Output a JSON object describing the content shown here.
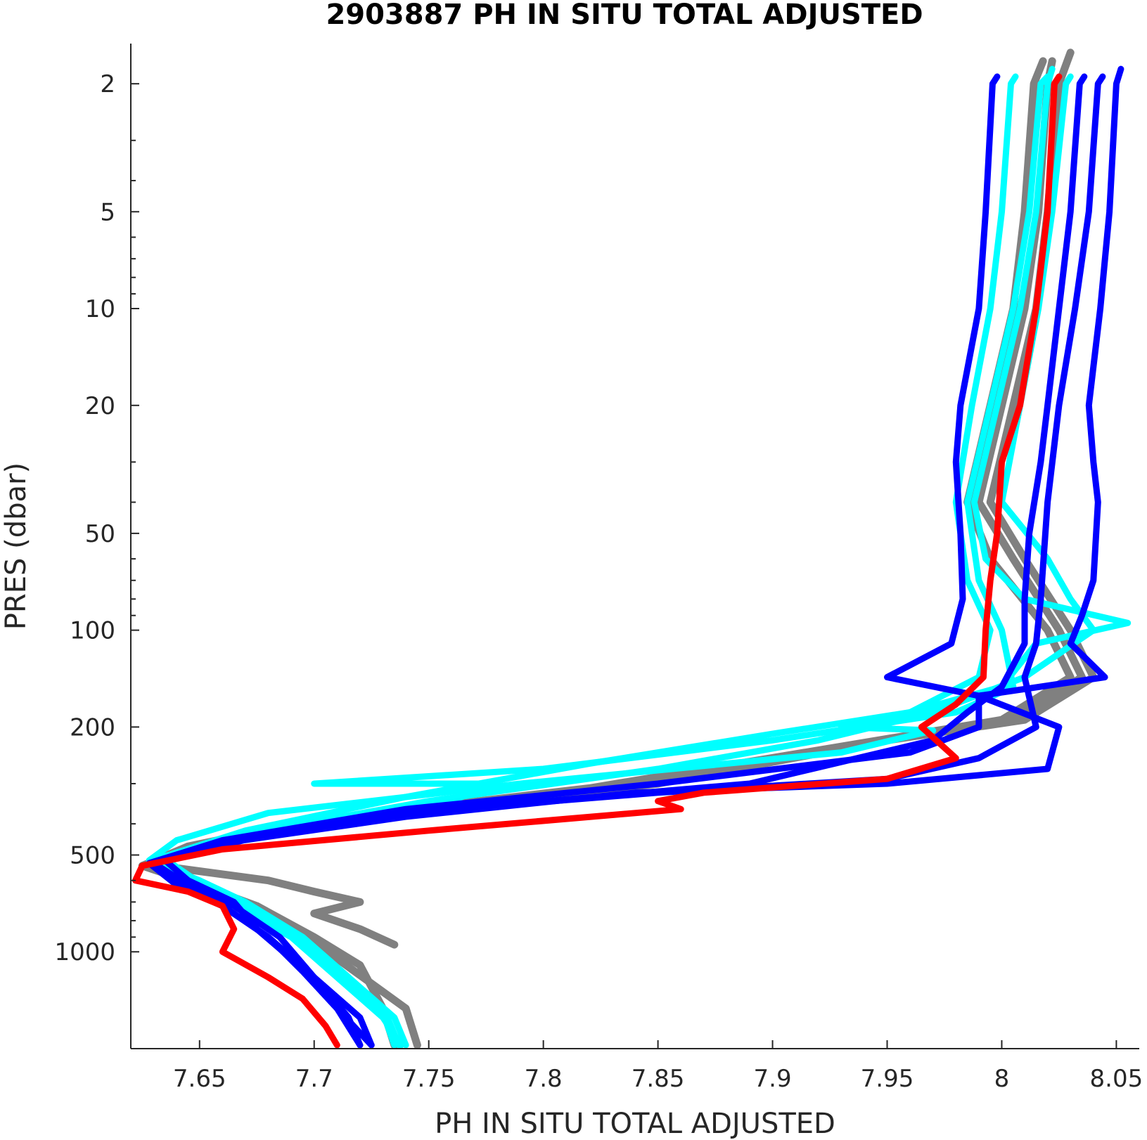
{
  "chart_data": {
    "type": "line",
    "title": "2903887  PH IN SITU TOTAL ADJUSTED",
    "xlabel": "PH IN SITU TOTAL ADJUSTED",
    "ylabel": "PRES (dbar)",
    "xlim": [
      7.62,
      8.06
    ],
    "ylim": [
      1.5,
      2000
    ],
    "y_scale": "log",
    "y_reversed": true,
    "grid": false,
    "x_ticks": [
      7.65,
      7.7,
      7.75,
      7.8,
      7.85,
      7.9,
      7.95,
      8.0,
      8.05
    ],
    "x_tick_labels": [
      "7.65",
      "7.7",
      "7.75",
      "7.8",
      "7.85",
      "7.9",
      "7.95",
      "8",
      "8.05"
    ],
    "y_ticks": [
      2,
      5,
      10,
      20,
      50,
      100,
      200,
      500,
      1000
    ],
    "y_tick_labels": [
      "2",
      "5",
      "10",
      "20",
      "50",
      "100",
      "200",
      "500",
      "1000"
    ],
    "series": [
      {
        "color": "#808080",
        "points": [
          [
            8.03,
            1.6
          ],
          [
            8.025,
            2
          ],
          [
            8.02,
            5
          ],
          [
            8.015,
            10
          ],
          [
            8.005,
            20
          ],
          [
            7.995,
            40
          ],
          [
            8.01,
            60
          ],
          [
            8.03,
            100
          ],
          [
            8.04,
            140
          ],
          [
            8.01,
            190
          ],
          [
            7.95,
            220
          ],
          [
            7.85,
            300
          ],
          [
            7.72,
            380
          ],
          [
            7.66,
            460
          ],
          [
            7.63,
            530
          ],
          [
            7.64,
            600
          ],
          [
            7.66,
            700
          ],
          [
            7.69,
            850
          ],
          [
            7.71,
            1050
          ],
          [
            7.74,
            1500
          ],
          [
            7.745,
            1950
          ]
        ]
      },
      {
        "color": "#808080",
        "points": [
          [
            8.018,
            1.7
          ],
          [
            8.014,
            2
          ],
          [
            8.01,
            5
          ],
          [
            8.005,
            10
          ],
          [
            7.995,
            20
          ],
          [
            7.985,
            40
          ],
          [
            7.995,
            60
          ],
          [
            8.02,
            100
          ],
          [
            8.03,
            140
          ],
          [
            8.0,
            190
          ],
          [
            7.93,
            230
          ],
          [
            7.82,
            310
          ],
          [
            7.7,
            390
          ],
          [
            7.645,
            470
          ],
          [
            7.625,
            540
          ],
          [
            7.65,
            620
          ],
          [
            7.675,
            720
          ],
          [
            7.7,
            900
          ],
          [
            7.72,
            1100
          ],
          [
            7.73,
            1500
          ],
          [
            7.735,
            1950
          ]
        ]
      },
      {
        "color": "#808080",
        "points": [
          [
            8.022,
            1.7
          ],
          [
            8.02,
            2
          ],
          [
            8.016,
            5
          ],
          [
            8.01,
            10
          ],
          [
            8.0,
            20
          ],
          [
            7.99,
            40
          ],
          [
            8.005,
            60
          ],
          [
            8.025,
            100
          ],
          [
            8.035,
            140
          ],
          [
            8.005,
            190
          ],
          [
            7.94,
            225
          ],
          [
            7.83,
            305
          ],
          [
            7.71,
            385
          ],
          [
            7.65,
            465
          ],
          [
            7.628,
            535
          ],
          [
            7.68,
            600
          ],
          [
            7.7,
            650
          ],
          [
            7.72,
            700
          ],
          [
            7.7,
            760
          ],
          [
            7.72,
            850
          ],
          [
            7.735,
            950
          ]
        ]
      },
      {
        "color": "#00ffff",
        "points": [
          [
            8.022,
            1.8
          ],
          [
            8.02,
            2
          ],
          [
            8.015,
            5
          ],
          [
            8.008,
            10
          ],
          [
            7.998,
            20
          ],
          [
            7.988,
            40
          ],
          [
            7.993,
            60
          ],
          [
            8.01,
            80
          ],
          [
            8.055,
            95
          ],
          [
            8.015,
            110
          ],
          [
            8.0,
            150
          ],
          [
            7.96,
            180
          ],
          [
            7.93,
            200
          ],
          [
            7.97,
            205
          ],
          [
            7.93,
            240
          ],
          [
            7.79,
            300
          ],
          [
            7.68,
            370
          ],
          [
            7.64,
            450
          ],
          [
            7.628,
            520
          ],
          [
            7.65,
            600
          ],
          [
            7.67,
            700
          ],
          [
            7.695,
            900
          ],
          [
            7.715,
            1200
          ],
          [
            7.735,
            1600
          ],
          [
            7.74,
            1950
          ]
        ]
      },
      {
        "color": "#00ffff",
        "points": [
          [
            8.02,
            1.9
          ],
          [
            8.017,
            2
          ],
          [
            8.012,
            5
          ],
          [
            8.005,
            10
          ],
          [
            7.995,
            20
          ],
          [
            7.985,
            40
          ],
          [
            7.99,
            70
          ],
          [
            8.0,
            100
          ],
          [
            8.005,
            150
          ],
          [
            7.98,
            180
          ],
          [
            7.9,
            220
          ],
          [
            7.8,
            270
          ],
          [
            7.7,
            300
          ],
          [
            7.78,
            300
          ],
          [
            7.75,
            360
          ],
          [
            7.66,
            450
          ],
          [
            7.63,
            530
          ],
          [
            7.645,
            610
          ],
          [
            7.665,
            720
          ],
          [
            7.69,
            900
          ],
          [
            7.71,
            1200
          ],
          [
            7.73,
            1600
          ],
          [
            7.738,
            1950
          ]
        ]
      },
      {
        "color": "#00ffff",
        "points": [
          [
            8.006,
            1.9
          ],
          [
            8.004,
            2
          ],
          [
            8.0,
            5
          ],
          [
            7.995,
            10
          ],
          [
            7.987,
            20
          ],
          [
            7.98,
            40
          ],
          [
            7.985,
            70
          ],
          [
            7.995,
            100
          ],
          [
            7.99,
            140
          ],
          [
            7.96,
            180
          ],
          [
            7.9,
            210
          ],
          [
            7.82,
            260
          ],
          [
            7.74,
            330
          ],
          [
            7.67,
            420
          ],
          [
            7.633,
            510
          ],
          [
            7.645,
            600
          ],
          [
            7.665,
            700
          ],
          [
            7.69,
            880
          ],
          [
            7.71,
            1150
          ],
          [
            7.73,
            1550
          ],
          [
            7.735,
            1950
          ]
        ]
      },
      {
        "color": "#00ffff",
        "points": [
          [
            8.03,
            1.9
          ],
          [
            8.028,
            2
          ],
          [
            8.022,
            5
          ],
          [
            8.016,
            10
          ],
          [
            8.008,
            20
          ],
          [
            8.0,
            40
          ],
          [
            8.02,
            60
          ],
          [
            8.03,
            80
          ],
          [
            8.04,
            100
          ],
          [
            8.01,
            140
          ],
          [
            7.97,
            180
          ],
          [
            7.92,
            220
          ],
          [
            7.85,
            270
          ],
          [
            7.75,
            340
          ],
          [
            7.67,
            430
          ],
          [
            7.635,
            515
          ],
          [
            7.65,
            610
          ],
          [
            7.672,
            720
          ],
          [
            7.695,
            900
          ],
          [
            7.715,
            1200
          ],
          [
            7.732,
            1600
          ],
          [
            7.737,
            1950
          ]
        ]
      },
      {
        "color": "#0000ff",
        "points": [
          [
            7.998,
            1.9
          ],
          [
            7.996,
            2
          ],
          [
            7.993,
            5
          ],
          [
            7.99,
            10
          ],
          [
            7.982,
            20
          ],
          [
            7.98,
            30
          ],
          [
            7.982,
            50
          ],
          [
            7.983,
            80
          ],
          [
            7.978,
            110
          ],
          [
            7.95,
            140
          ],
          [
            7.99,
            160
          ],
          [
            7.99,
            200
          ],
          [
            7.96,
            240
          ],
          [
            7.85,
            300
          ],
          [
            7.74,
            360
          ],
          [
            7.66,
            450
          ],
          [
            7.63,
            530
          ],
          [
            7.64,
            620
          ],
          [
            7.66,
            720
          ],
          [
            7.68,
            900
          ],
          [
            7.7,
            1200
          ],
          [
            7.72,
            1600
          ],
          [
            7.725,
            1950
          ]
        ]
      },
      {
        "color": "#0000ff",
        "points": [
          [
            8.036,
            1.9
          ],
          [
            8.034,
            2
          ],
          [
            8.03,
            5
          ],
          [
            8.025,
            10
          ],
          [
            8.02,
            20
          ],
          [
            8.017,
            30
          ],
          [
            8.012,
            50
          ],
          [
            8.01,
            80
          ],
          [
            8.01,
            110
          ],
          [
            8.0,
            150
          ],
          [
            7.985,
            180
          ],
          [
            7.97,
            220
          ],
          [
            7.89,
            300
          ],
          [
            7.76,
            360
          ],
          [
            7.68,
            430
          ],
          [
            7.635,
            520
          ],
          [
            7.645,
            600
          ],
          [
            7.665,
            700
          ],
          [
            7.675,
            850
          ],
          [
            7.69,
            1050
          ],
          [
            7.71,
            1500
          ],
          [
            7.72,
            1950
          ]
        ]
      },
      {
        "color": "#0000ff",
        "points": [
          [
            8.052,
            1.8
          ],
          [
            8.05,
            2
          ],
          [
            8.047,
            5
          ],
          [
            8.043,
            10
          ],
          [
            8.038,
            20
          ],
          [
            8.04,
            30
          ],
          [
            8.042,
            40
          ],
          [
            8.04,
            70
          ],
          [
            8.035,
            90
          ],
          [
            8.03,
            110
          ],
          [
            8.045,
            140
          ],
          [
            7.99,
            160
          ],
          [
            8.025,
            200
          ],
          [
            8.02,
            270
          ],
          [
            7.95,
            300
          ],
          [
            7.84,
            320
          ],
          [
            7.74,
            380
          ],
          [
            7.66,
            460
          ],
          [
            7.63,
            530
          ],
          [
            7.645,
            620
          ],
          [
            7.665,
            720
          ],
          [
            7.685,
            900
          ],
          [
            7.7,
            1200
          ],
          [
            7.715,
            1600
          ],
          [
            7.72,
            1950
          ]
        ]
      },
      {
        "color": "#0000ff",
        "points": [
          [
            8.044,
            1.9
          ],
          [
            8.042,
            2
          ],
          [
            8.038,
            5
          ],
          [
            8.032,
            10
          ],
          [
            8.025,
            20
          ],
          [
            8.02,
            40
          ],
          [
            8.017,
            80
          ],
          [
            8.015,
            110
          ],
          [
            8.01,
            140
          ],
          [
            8.015,
            200
          ],
          [
            7.99,
            250
          ],
          [
            7.95,
            290
          ],
          [
            7.85,
            320
          ],
          [
            7.74,
            370
          ],
          [
            7.66,
            450
          ],
          [
            7.628,
            530
          ],
          [
            7.64,
            620
          ],
          [
            7.66,
            720
          ],
          [
            7.68,
            900
          ],
          [
            7.695,
            1150
          ],
          [
            7.71,
            1500
          ],
          [
            7.725,
            1950
          ]
        ]
      },
      {
        "color": "#ff0000",
        "points": [
          [
            8.025,
            1.9
          ],
          [
            8.023,
            2
          ],
          [
            8.02,
            5
          ],
          [
            8.015,
            10
          ],
          [
            8.008,
            20
          ],
          [
            8.0,
            30
          ],
          [
            7.998,
            50
          ],
          [
            7.995,
            70
          ],
          [
            7.993,
            100
          ],
          [
            7.992,
            140
          ],
          [
            7.98,
            170
          ],
          [
            7.965,
            200
          ],
          [
            7.98,
            250
          ],
          [
            7.95,
            290
          ],
          [
            7.87,
            320
          ],
          [
            7.85,
            340
          ],
          [
            7.86,
            360
          ],
          [
            7.75,
            420
          ],
          [
            7.66,
            480
          ],
          [
            7.625,
            540
          ],
          [
            7.622,
            600
          ],
          [
            7.645,
            650
          ],
          [
            7.66,
            720
          ],
          [
            7.665,
            850
          ],
          [
            7.66,
            1000
          ],
          [
            7.68,
            1200
          ],
          [
            7.695,
            1400
          ],
          [
            7.705,
            1700
          ],
          [
            7.71,
            1950
          ]
        ]
      }
    ]
  }
}
